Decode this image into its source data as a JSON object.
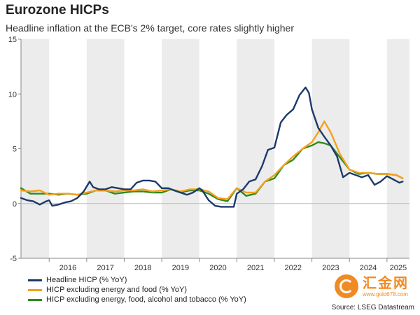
{
  "header": {
    "title": "Eurozone HICPs",
    "subtitle": "Headline inflation at the ECB's 2% target, core rates slightly higher"
  },
  "source": "Source: LSEG Datastream",
  "watermark": {
    "text": "汇金网",
    "url": "www.gold678.com"
  },
  "colors": {
    "headline": "#1b3a6b",
    "core_ef": "#f5a11c",
    "core_efat": "#2e8b1f",
    "band": "#ececec",
    "zero_line": "#bbbbbb"
  },
  "chart_data": {
    "type": "line",
    "title": "Eurozone HICPs",
    "subtitle": "Headline inflation at the ECB's 2% target, core rates slightly higher",
    "xlabel": "",
    "ylabel": "",
    "xlim": [
      2015.25,
      2025.6
    ],
    "ylim": [
      -5,
      15
    ],
    "yticks": [
      -5,
      0,
      5,
      10,
      15
    ],
    "xticks": [
      "2016",
      "2017",
      "2018",
      "2019",
      "2020",
      "2021",
      "2022",
      "2023",
      "2024",
      "2025"
    ],
    "shaded_bands": "alternate calendar years",
    "grid": false,
    "legend_position": "bottom-left",
    "series": [
      {
        "name": "Headline HICP (% YoY)",
        "color": "#1b3a6b",
        "x": [
          2015.25,
          2015.42,
          2015.58,
          2015.75,
          2015.92,
          2016.0,
          2016.08,
          2016.25,
          2016.42,
          2016.58,
          2016.75,
          2016.92,
          2017.08,
          2017.17,
          2017.33,
          2017.5,
          2017.67,
          2017.83,
          2018.0,
          2018.17,
          2018.33,
          2018.5,
          2018.67,
          2018.83,
          2019.0,
          2019.17,
          2019.33,
          2019.5,
          2019.67,
          2019.83,
          2020.0,
          2020.08,
          2020.25,
          2020.42,
          2020.58,
          2020.75,
          2020.92,
          2021.0,
          2021.17,
          2021.33,
          2021.5,
          2021.67,
          2021.83,
          2022.0,
          2022.17,
          2022.33,
          2022.5,
          2022.67,
          2022.83,
          2022.92,
          2023.0,
          2023.17,
          2023.33,
          2023.5,
          2023.67,
          2023.83,
          2024.0,
          2024.17,
          2024.33,
          2024.5,
          2024.67,
          2024.83,
          2025.0,
          2025.17,
          2025.33,
          2025.42
        ],
        "values": [
          0.5,
          0.3,
          0.2,
          -0.1,
          0.2,
          0.3,
          -0.2,
          -0.1,
          0.1,
          0.2,
          0.5,
          1.1,
          2.0,
          1.5,
          1.3,
          1.3,
          1.5,
          1.4,
          1.3,
          1.3,
          1.9,
          2.1,
          2.1,
          2.0,
          1.4,
          1.4,
          1.2,
          1.0,
          0.8,
          1.0,
          1.4,
          1.2,
          0.3,
          -0.2,
          -0.3,
          -0.3,
          -0.3,
          0.9,
          1.3,
          2.0,
          2.2,
          3.4,
          4.9,
          5.1,
          7.4,
          8.1,
          8.6,
          9.9,
          10.6,
          10.1,
          8.6,
          6.9,
          6.1,
          5.3,
          4.3,
          2.4,
          2.8,
          2.6,
          2.4,
          2.6,
          1.7,
          2.0,
          2.5,
          2.2,
          1.9,
          2.0
        ]
      },
      {
        "name": "HICP excluding energy and food (% YoY)",
        "color": "#f5a11c",
        "x": [
          2015.25,
          2015.5,
          2015.75,
          2016.0,
          2016.25,
          2016.5,
          2016.75,
          2017.0,
          2017.25,
          2017.5,
          2017.75,
          2018.0,
          2018.25,
          2018.5,
          2018.75,
          2019.0,
          2019.25,
          2019.5,
          2019.75,
          2020.0,
          2020.25,
          2020.5,
          2020.75,
          2021.0,
          2021.25,
          2021.5,
          2021.75,
          2022.0,
          2022.25,
          2022.5,
          2022.75,
          2023.0,
          2023.17,
          2023.33,
          2023.5,
          2023.75,
          2024.0,
          2024.25,
          2024.5,
          2024.75,
          2025.0,
          2025.25,
          2025.42
        ],
        "values": [
          1.2,
          1.1,
          1.2,
          0.8,
          0.9,
          0.9,
          0.8,
          1.0,
          1.2,
          1.2,
          1.1,
          1.2,
          1.2,
          1.3,
          1.1,
          1.2,
          1.3,
          1.1,
          1.3,
          1.3,
          1.1,
          0.5,
          0.4,
          1.4,
          1.0,
          1.0,
          2.0,
          2.6,
          3.5,
          4.3,
          5.0,
          5.6,
          6.5,
          7.5,
          6.5,
          4.5,
          3.1,
          2.8,
          2.8,
          2.7,
          2.7,
          2.6,
          2.3
        ]
      },
      {
        "name": "HICP excluding energy, food, alcohol and tobacco (% YoY)",
        "color": "#2e8b1f",
        "x": [
          2015.25,
          2015.5,
          2015.75,
          2016.0,
          2016.25,
          2016.5,
          2016.75,
          2017.0,
          2017.25,
          2017.5,
          2017.75,
          2018.0,
          2018.25,
          2018.5,
          2018.75,
          2019.0,
          2019.25,
          2019.5,
          2019.75,
          2020.0,
          2020.25,
          2020.5,
          2020.75,
          2021.0,
          2021.25,
          2021.5,
          2021.75,
          2022.0,
          2022.25,
          2022.5,
          2022.75,
          2023.0,
          2023.17,
          2023.33,
          2023.5,
          2023.75,
          2024.0,
          2024.25,
          2024.5,
          2024.75,
          2025.0,
          2025.25,
          2025.42
        ],
        "values": [
          1.4,
          0.9,
          0.9,
          0.9,
          0.8,
          0.9,
          0.8,
          0.9,
          1.2,
          1.2,
          0.9,
          1.0,
          1.1,
          1.1,
          1.0,
          1.0,
          1.3,
          1.0,
          1.2,
          1.2,
          0.9,
          0.4,
          0.2,
          1.4,
          0.7,
          0.9,
          2.0,
          2.3,
          3.5,
          4.0,
          5.0,
          5.3,
          5.6,
          5.5,
          5.3,
          4.2,
          3.1,
          2.7,
          2.8,
          2.7,
          2.7,
          2.6,
          2.3
        ]
      }
    ]
  }
}
